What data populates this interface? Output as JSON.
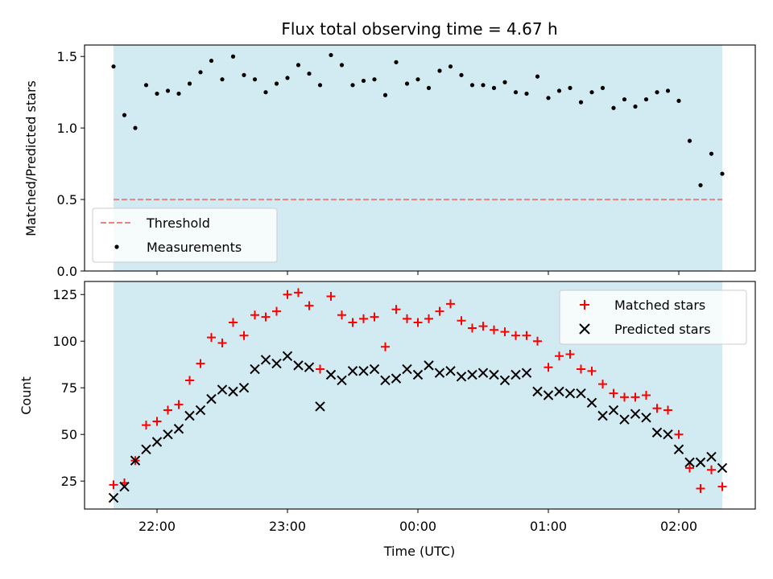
{
  "chart_data": [
    {
      "type": "scatter",
      "title": "Flux total observing time = 4.67 h",
      "ylabel": "Matched/Predicted stars",
      "ylim": [
        0,
        1.58
      ],
      "yticks": [
        0.0,
        0.5,
        1.0,
        1.5
      ],
      "ytick_labels": [
        "0.0",
        "0.5",
        "1.0",
        "1.5"
      ],
      "shaded_color": "#add8e6",
      "threshold": 0.5,
      "threshold_color": "#f08080",
      "marker_color": "#000000",
      "legend": [
        "Threshold",
        "Measurements"
      ],
      "legend_position": "lower-left",
      "x": [
        "21:40",
        "21:45",
        "21:50",
        "21:55",
        "22:00",
        "22:05",
        "22:10",
        "22:15",
        "22:20",
        "22:25",
        "22:30",
        "22:35",
        "22:40",
        "22:45",
        "22:50",
        "22:55",
        "23:00",
        "23:05",
        "23:10",
        "23:15",
        "23:20",
        "23:25",
        "23:30",
        "23:35",
        "23:40",
        "23:45",
        "23:50",
        "23:55",
        "00:00",
        "00:05",
        "00:10",
        "00:15",
        "00:20",
        "00:25",
        "00:30",
        "00:35",
        "00:40",
        "00:45",
        "00:50",
        "00:55",
        "01:00",
        "01:05",
        "01:10",
        "01:15",
        "01:20",
        "01:25",
        "01:30",
        "01:35",
        "01:40",
        "01:45",
        "01:50",
        "01:55",
        "02:00",
        "02:05",
        "02:10",
        "02:15",
        "02:20"
      ],
      "values": [
        1.43,
        1.09,
        1.0,
        1.3,
        1.24,
        1.26,
        1.24,
        1.31,
        1.39,
        1.47,
        1.34,
        1.5,
        1.37,
        1.34,
        1.25,
        1.31,
        1.35,
        1.44,
        1.38,
        1.3,
        1.51,
        1.44,
        1.3,
        1.33,
        1.34,
        1.23,
        1.46,
        1.31,
        1.34,
        1.28,
        1.4,
        1.43,
        1.37,
        1.3,
        1.3,
        1.28,
        1.32,
        1.25,
        1.24,
        1.36,
        1.21,
        1.26,
        1.28,
        1.18,
        1.25,
        1.28,
        1.14,
        1.2,
        1.15,
        1.2,
        1.25,
        1.26,
        1.19,
        0.91,
        0.6,
        0.82,
        0.68
      ]
    },
    {
      "type": "scatter",
      "xlabel": "Time (UTC)",
      "ylabel": "Count",
      "ylim": [
        10,
        132
      ],
      "yticks": [
        25,
        50,
        75,
        100,
        125
      ],
      "ytick_labels": [
        "25",
        "50",
        "75",
        "100",
        "125"
      ],
      "xticks": [
        "22:00",
        "23:00",
        "00:00",
        "01:00",
        "02:00"
      ],
      "shaded_color": "#add8e6",
      "legend_position": "upper-right",
      "x": [
        "21:40",
        "21:45",
        "21:50",
        "21:55",
        "22:00",
        "22:05",
        "22:10",
        "22:15",
        "22:20",
        "22:25",
        "22:30",
        "22:35",
        "22:40",
        "22:45",
        "22:50",
        "22:55",
        "23:00",
        "23:05",
        "23:10",
        "23:15",
        "23:20",
        "23:25",
        "23:30",
        "23:35",
        "23:40",
        "23:45",
        "23:50",
        "23:55",
        "00:00",
        "00:05",
        "00:10",
        "00:15",
        "00:20",
        "00:25",
        "00:30",
        "00:35",
        "00:40",
        "00:45",
        "00:50",
        "00:55",
        "01:00",
        "01:05",
        "01:10",
        "01:15",
        "01:20",
        "01:25",
        "01:30",
        "01:35",
        "01:40",
        "01:45",
        "01:50",
        "01:55",
        "02:00",
        "02:05",
        "02:10",
        "02:15",
        "02:20"
      ],
      "series": [
        {
          "name": "Matched stars",
          "marker": "plus",
          "color": "#ff0000",
          "values": [
            23,
            24,
            36,
            55,
            57,
            63,
            66,
            79,
            88,
            102,
            99,
            110,
            103,
            114,
            113,
            116,
            125,
            126,
            119,
            85,
            124,
            114,
            110,
            112,
            113,
            97,
            117,
            112,
            110,
            112,
            116,
            120,
            111,
            107,
            108,
            106,
            105,
            103,
            103,
            100,
            86,
            92,
            93,
            85,
            84,
            77,
            72,
            70,
            70,
            71,
            64,
            63,
            50,
            32,
            21,
            31,
            22
          ]
        },
        {
          "name": "Predicted stars",
          "marker": "x",
          "color": "#000000",
          "values": [
            16,
            22,
            36,
            42,
            46,
            50,
            53,
            60,
            63,
            69,
            74,
            73,
            75,
            85,
            90,
            88,
            92,
            87,
            86,
            65,
            82,
            79,
            84,
            84,
            85,
            79,
            80,
            85,
            82,
            87,
            83,
            84,
            81,
            82,
            83,
            82,
            79,
            82,
            83,
            73,
            71,
            73,
            72,
            72,
            67,
            60,
            63,
            58,
            61,
            59,
            51,
            50,
            42,
            35,
            35,
            38,
            32
          ]
        }
      ]
    }
  ]
}
